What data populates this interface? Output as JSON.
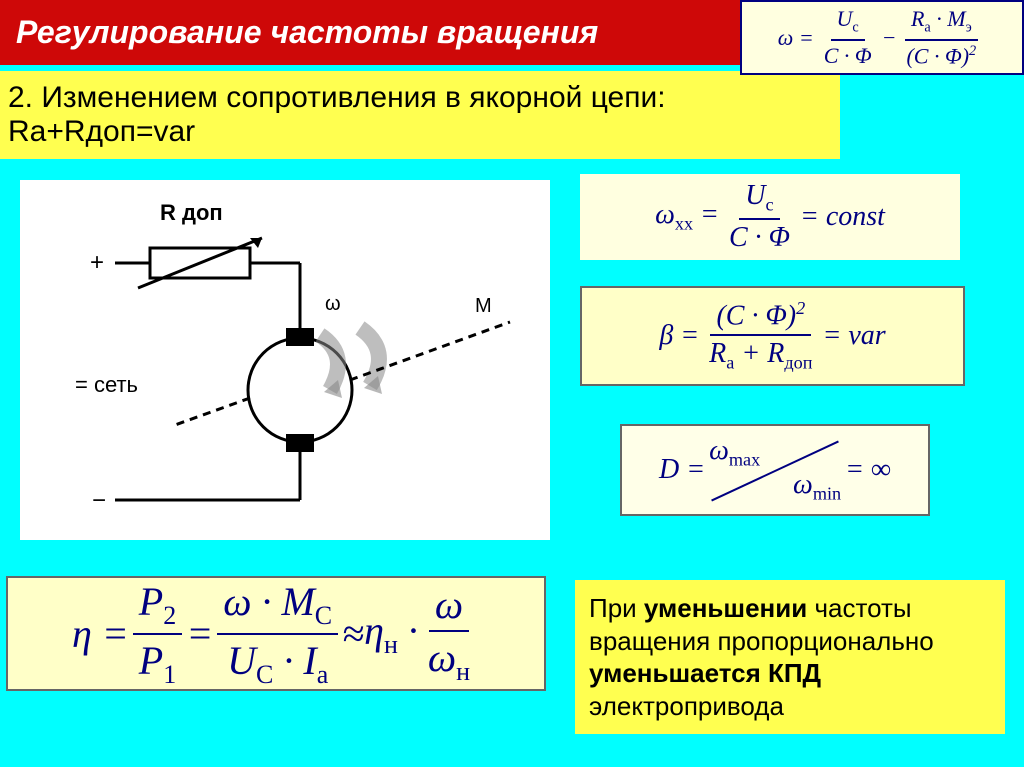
{
  "title": "Регулирование частоты вращения",
  "formula_top": {
    "lhs": "ω =",
    "frac1_num": "U<sub>c</sub>",
    "frac1_den": "C · Φ",
    "minus": "−",
    "frac2_num": "R<sub>a</sub> · M<sub>э</sub>",
    "frac2_den": "(C · Φ)<sup>2</sup>"
  },
  "subtitle": {
    "line1": "2. Изменением сопротивления в якорной цепи:",
    "line2": "Ra+Rдоп=var"
  },
  "diagram_labels": {
    "r_dop": "R доп",
    "plus": "+",
    "minus": "−",
    "set": "= сеть",
    "omega": "ω",
    "m": "M"
  },
  "f_omega_xx": {
    "lhs": "ω<sub>xx</sub> =",
    "num": "U<sub>c</sub>",
    "den": "C · Φ",
    "rhs": "= const"
  },
  "f_beta": {
    "lhs": "β =",
    "num": "(C · Φ)<sup>2</sup>",
    "den": "R<sub>a</sub> + R<sub>доп</sub>",
    "rhs": "= var"
  },
  "f_d": {
    "lhs": "D =",
    "num": "ω<sub>max</sub>",
    "den": "ω<sub>min</sub>",
    "rhs": "= ∞"
  },
  "f_eta": {
    "lhs": "η =",
    "f1_num": "P<sub>2</sub>",
    "f1_den": "P<sub>1</sub>",
    "eq1": "=",
    "f2_num": "ω · M<sub>C</sub>",
    "f2_den": "U<sub>C</sub> · I<sub>a</sub>",
    "approx": "≈",
    "eta_n": "η<sub>н</sub> ·",
    "f3_num": "ω",
    "f3_den": "ω<sub>н</sub>"
  },
  "note": "При <b>уменьшении</b> частоты вращения пропорционально <b>уменьшается КПД</b> электропривода"
}
